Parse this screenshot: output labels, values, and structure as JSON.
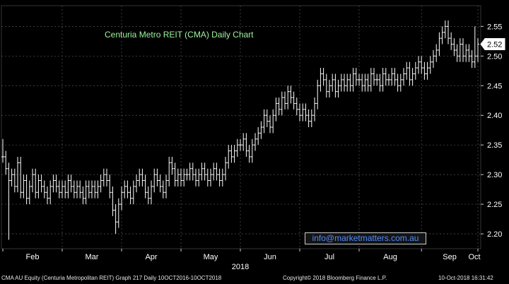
{
  "chart_data": {
    "type": "bar",
    "subtype": "ohlc-bar",
    "title": "Centuria Metro REIT (CMA) Daily Chart",
    "x_tick_labels": [
      "Feb",
      "Mar",
      "Apr",
      "May",
      "Jun",
      "Jul",
      "Aug",
      "Sep",
      "Oct"
    ],
    "x_year_label": "2018",
    "y_ticks": [
      2.2,
      2.25,
      2.3,
      2.35,
      2.4,
      2.45,
      2.5,
      2.55
    ],
    "y_tick_labels": [
      "2.20",
      "2.25",
      "2.30",
      "2.35",
      "2.40",
      "2.45",
      "2.50",
      "2.55"
    ],
    "ylim": [
      2.175,
      2.585
    ],
    "last_price": "2.52",
    "grid": true,
    "colors": {
      "background": "#000000",
      "bars": "#ffffff",
      "grid": "#555555",
      "title": "#9ff59f",
      "watermark": "#4f8cff"
    },
    "month_starts": [
      0,
      20,
      40,
      60,
      80,
      100,
      120,
      141,
      161
    ],
    "close_values": [
      2.33,
      2.31,
      2.29,
      2.3,
      2.28,
      2.32,
      2.27,
      2.29,
      2.26,
      2.28,
      2.3,
      2.27,
      2.29,
      2.28,
      2.27,
      2.26,
      2.28,
      2.29,
      2.28,
      2.27,
      2.28,
      2.27,
      2.29,
      2.28,
      2.27,
      2.28,
      2.27,
      2.26,
      2.28,
      2.27,
      2.28,
      2.27,
      2.28,
      2.29,
      2.3,
      2.29,
      2.27,
      2.24,
      2.22,
      2.25,
      2.27,
      2.28,
      2.27,
      2.26,
      2.28,
      2.29,
      2.3,
      2.29,
      2.27,
      2.26,
      2.28,
      2.3,
      2.29,
      2.28,
      2.27,
      2.29,
      2.32,
      2.31,
      2.29,
      2.3,
      2.29,
      2.3,
      2.3,
      2.31,
      2.3,
      2.29,
      2.3,
      2.31,
      2.3,
      2.29,
      2.3,
      2.31,
      2.3,
      2.29,
      2.3,
      2.32,
      2.34,
      2.33,
      2.34,
      2.35,
      2.35,
      2.36,
      2.34,
      2.33,
      2.35,
      2.36,
      2.37,
      2.38,
      2.4,
      2.39,
      2.38,
      2.4,
      2.42,
      2.41,
      2.43,
      2.42,
      2.44,
      2.43,
      2.42,
      2.41,
      2.4,
      2.41,
      2.4,
      2.39,
      2.4,
      2.42,
      2.45,
      2.47,
      2.46,
      2.44,
      2.45,
      2.46,
      2.44,
      2.45,
      2.46,
      2.45,
      2.46,
      2.45,
      2.47,
      2.46,
      2.46,
      2.45,
      2.46,
      2.45,
      2.47,
      2.46,
      2.46,
      2.45,
      2.47,
      2.46,
      2.46,
      2.47,
      2.46,
      2.45,
      2.46,
      2.47,
      2.48,
      2.46,
      2.47,
      2.48,
      2.49,
      2.48,
      2.47,
      2.48,
      2.49,
      2.5,
      2.51,
      2.53,
      2.54,
      2.55,
      2.53,
      2.52,
      2.51,
      2.5,
      2.52,
      2.5,
      2.51,
      2.5,
      2.49,
      2.5,
      2.52
    ]
  },
  "footer": {
    "left": "CMA AU Equity (Centuria Metropolitan REIT) Graph 217  Daily 10OCT2016-10OCT2018",
    "center": "Copyright© 2018 Bloomberg Finance L.P.",
    "right": "10-Oct-2018 16:31:42"
  },
  "watermark": "info@marketmatters.com.au"
}
